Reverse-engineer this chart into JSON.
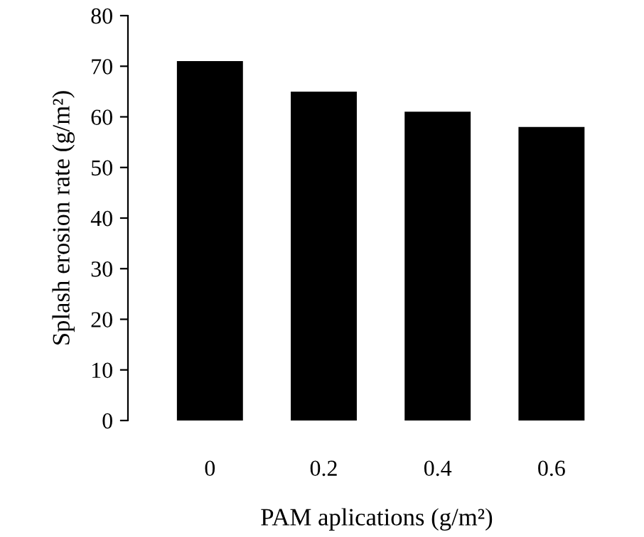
{
  "chart_data": {
    "type": "bar",
    "xlabel": "PAM aplications (g/m²)",
    "ylabel": "Splash erosion rate (g/m²)",
    "categories": [
      "0",
      "0.2",
      "0.4",
      "0.6"
    ],
    "values": [
      71,
      65,
      61,
      58
    ],
    "color": "#000000",
    "ylim": [
      0,
      80
    ],
    "yticks": [
      0,
      10,
      20,
      30,
      40,
      50,
      60,
      70,
      80
    ],
    "grid": false,
    "legend": false
  }
}
